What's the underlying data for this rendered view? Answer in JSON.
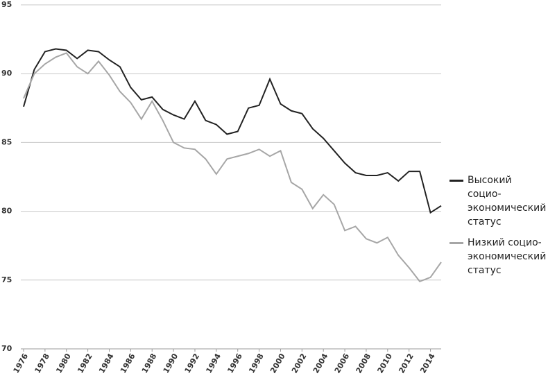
{
  "chart_data": {
    "type": "line",
    "x": [
      1976,
      1977,
      1978,
      1979,
      1980,
      1981,
      1982,
      1983,
      1984,
      1985,
      1986,
      1987,
      1988,
      1989,
      1990,
      1991,
      1992,
      1993,
      1994,
      1995,
      1996,
      1997,
      1998,
      1999,
      2000,
      2001,
      2002,
      2003,
      2004,
      2005,
      2006,
      2007,
      2008,
      2009,
      2010,
      2011,
      2012,
      2013,
      2014,
      2015
    ],
    "series": [
      {
        "name": "Высокий социо-экономический статус",
        "color": "#222222",
        "values": [
          87.6,
          90.3,
          91.6,
          91.8,
          91.7,
          91.1,
          91.7,
          91.6,
          91.0,
          90.5,
          89.0,
          88.1,
          88.3,
          87.4,
          87.0,
          86.7,
          88.0,
          86.6,
          86.3,
          85.6,
          85.8,
          87.5,
          87.7,
          89.6,
          87.8,
          87.3,
          87.1,
          86.0,
          85.3,
          84.4,
          83.5,
          82.8,
          82.6,
          82.6,
          82.8,
          82.2,
          82.9,
          82.9,
          79.9,
          80.4
        ]
      },
      {
        "name": "Низкий социо-экономический статус",
        "color": "#a6a6a6",
        "values": [
          88.2,
          90.0,
          90.7,
          91.2,
          91.5,
          90.5,
          90.0,
          90.9,
          89.9,
          88.7,
          87.9,
          86.7,
          88.0,
          86.6,
          85.0,
          84.6,
          84.5,
          83.8,
          82.7,
          83.8,
          84.0,
          84.2,
          84.5,
          84.0,
          84.4,
          82.1,
          81.6,
          80.2,
          81.2,
          80.5,
          78.6,
          78.9,
          78.0,
          77.7,
          78.1,
          76.8,
          75.9,
          74.9,
          75.2,
          76.3
        ]
      }
    ],
    "xlim": [
      1976,
      2015
    ],
    "xticks": [
      1976,
      1978,
      1980,
      1982,
      1984,
      1986,
      1988,
      1990,
      1992,
      1994,
      1996,
      1998,
      2000,
      2002,
      2004,
      2006,
      2008,
      2010,
      2012,
      2014
    ],
    "ylim": [
      70,
      95
    ],
    "yticks": [
      70,
      75,
      80,
      85,
      90,
      95
    ],
    "grid": true,
    "legend": "right"
  }
}
